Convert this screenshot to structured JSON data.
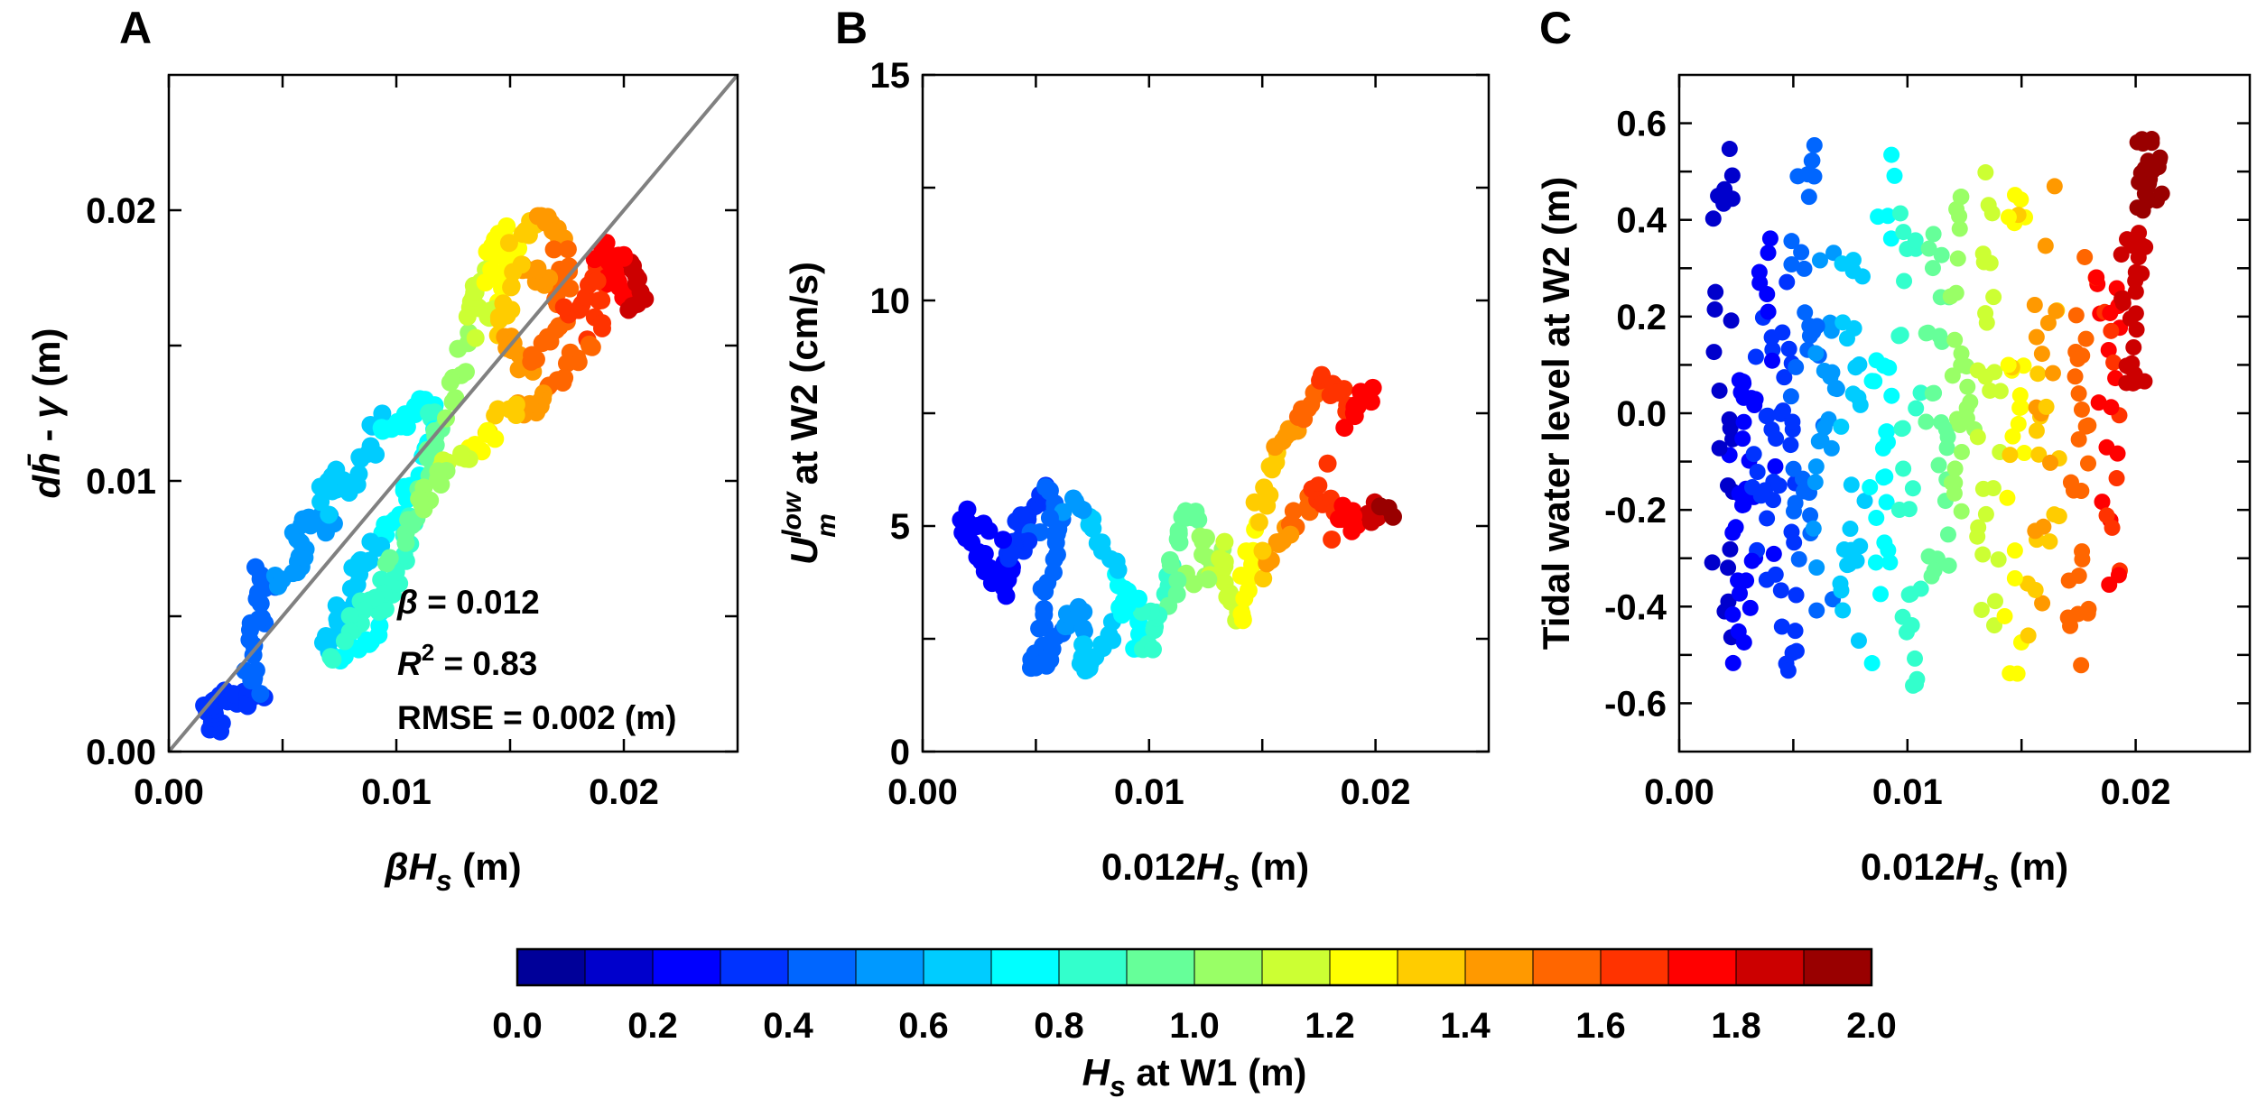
{
  "chart_data": [
    {
      "panel": "A",
      "type": "scatter",
      "xlim": [
        0,
        0.025
      ],
      "ylim": [
        0,
        0.025
      ],
      "xticks": [
        {
          "v": 0,
          "label": "0.00"
        },
        {
          "v": 0.01,
          "label": "0.01"
        },
        {
          "v": 0.02,
          "label": "0.02"
        }
      ],
      "yticks": [
        {
          "v": 0,
          "label": "0.00"
        },
        {
          "v": 0.01,
          "label": "0.01"
        },
        {
          "v": 0.02,
          "label": "0.02"
        }
      ],
      "xlabel": {
        "beta": "β",
        "H": "H",
        "s": "s",
        "unit": " (m)"
      },
      "ylabel": {
        "d": "d",
        "hbar": "h̄",
        "dash": " - ",
        "gamma": "γ",
        "unit": " (m)"
      },
      "reference_line": {
        "from": [
          0,
          0
        ],
        "to": [
          0.025,
          0.025
        ],
        "color": "#808080"
      },
      "stats": {
        "beta_sym": "β",
        "beta_val": " = 0.012",
        "R": "R",
        "R_sup": "2",
        "R_val": " = 0.83",
        "rmse": "RMSE = 0.002 (m)"
      },
      "path": [
        [
          0.0021,
          0.0008,
          0.32
        ],
        [
          0.0019,
          0.0012,
          0.33
        ],
        [
          0.0022,
          0.0016,
          0.35
        ],
        [
          0.0018,
          0.0019,
          0.34
        ],
        [
          0.0024,
          0.0021,
          0.36
        ],
        [
          0.003,
          0.002,
          0.37
        ],
        [
          0.0036,
          0.0018,
          0.38
        ],
        [
          0.004,
          0.0022,
          0.4
        ],
        [
          0.0035,
          0.003,
          0.41
        ],
        [
          0.0038,
          0.0042,
          0.43
        ],
        [
          0.0042,
          0.0055,
          0.45
        ],
        [
          0.004,
          0.0068,
          0.47
        ],
        [
          0.0046,
          0.006,
          0.49
        ],
        [
          0.0052,
          0.0065,
          0.51
        ],
        [
          0.006,
          0.007,
          0.53
        ],
        [
          0.0055,
          0.008,
          0.55
        ],
        [
          0.0065,
          0.0088,
          0.57
        ],
        [
          0.0072,
          0.0082,
          0.59
        ],
        [
          0.0068,
          0.0095,
          0.61
        ],
        [
          0.0075,
          0.0102,
          0.63
        ],
        [
          0.0082,
          0.0098,
          0.65
        ],
        [
          0.0088,
          0.011,
          0.67
        ],
        [
          0.0092,
          0.0122,
          0.7
        ],
        [
          0.01,
          0.0118,
          0.73
        ],
        [
          0.0108,
          0.0125,
          0.76
        ],
        [
          0.0112,
          0.013,
          0.79
        ],
        [
          0.0118,
          0.0124,
          0.81
        ],
        [
          0.0115,
          0.0112,
          0.78
        ],
        [
          0.0108,
          0.01,
          0.75
        ],
        [
          0.01,
          0.0088,
          0.72
        ],
        [
          0.0092,
          0.0078,
          0.7
        ],
        [
          0.0085,
          0.007,
          0.68
        ],
        [
          0.008,
          0.0058,
          0.66
        ],
        [
          0.0074,
          0.005,
          0.64
        ],
        [
          0.007,
          0.004,
          0.68
        ],
        [
          0.0078,
          0.0035,
          0.72
        ],
        [
          0.0088,
          0.004,
          0.76
        ],
        [
          0.0095,
          0.0052,
          0.8
        ],
        [
          0.01,
          0.0065,
          0.84
        ],
        [
          0.0104,
          0.008,
          0.88
        ],
        [
          0.011,
          0.0095,
          0.92
        ],
        [
          0.0116,
          0.011,
          0.96
        ],
        [
          0.0122,
          0.0125,
          1.0
        ],
        [
          0.0128,
          0.014,
          1.05
        ],
        [
          0.0132,
          0.0155,
          1.1
        ],
        [
          0.0136,
          0.017,
          1.15
        ],
        [
          0.014,
          0.0182,
          1.2
        ],
        [
          0.0146,
          0.0192,
          1.25
        ],
        [
          0.0152,
          0.0186,
          1.28
        ],
        [
          0.0148,
          0.0172,
          1.24
        ],
        [
          0.014,
          0.016,
          1.18
        ],
        [
          0.0134,
          0.0168,
          1.14
        ],
        [
          0.0142,
          0.0178,
          1.22
        ],
        [
          0.0155,
          0.019,
          1.32
        ],
        [
          0.0162,
          0.0198,
          1.4
        ],
        [
          0.0168,
          0.0194,
          1.45
        ],
        [
          0.0172,
          0.0185,
          1.5
        ],
        [
          0.0176,
          0.0175,
          1.55
        ],
        [
          0.017,
          0.0168,
          1.52
        ],
        [
          0.0164,
          0.0175,
          1.46
        ],
        [
          0.0158,
          0.0182,
          1.42
        ],
        [
          0.015,
          0.017,
          1.36
        ],
        [
          0.0145,
          0.016,
          1.38
        ],
        [
          0.015,
          0.015,
          1.42
        ],
        [
          0.0156,
          0.014,
          1.47
        ],
        [
          0.0162,
          0.0148,
          1.52
        ],
        [
          0.017,
          0.0158,
          1.58
        ],
        [
          0.0178,
          0.0164,
          1.62
        ],
        [
          0.0185,
          0.017,
          1.66
        ],
        [
          0.0192,
          0.0178,
          1.7
        ],
        [
          0.0198,
          0.0172,
          1.75
        ],
        [
          0.0204,
          0.0165,
          1.8
        ],
        [
          0.0208,
          0.0172,
          1.85
        ],
        [
          0.0202,
          0.018,
          1.8
        ],
        [
          0.0195,
          0.0186,
          1.74
        ],
        [
          0.0188,
          0.0182,
          1.7
        ],
        [
          0.019,
          0.016,
          1.64
        ],
        [
          0.0184,
          0.015,
          1.58
        ],
        [
          0.0176,
          0.0142,
          1.54
        ],
        [
          0.0168,
          0.0132,
          1.5
        ],
        [
          0.016,
          0.0124,
          1.44
        ],
        [
          0.015,
          0.0128,
          1.38
        ],
        [
          0.0142,
          0.0118,
          1.3
        ],
        [
          0.0135,
          0.0112,
          1.24
        ],
        [
          0.0128,
          0.0108,
          1.16
        ],
        [
          0.0122,
          0.0104,
          1.1
        ],
        [
          0.0116,
          0.0098,
          1.05
        ],
        [
          0.011,
          0.009,
          1.0
        ],
        [
          0.01,
          0.0072,
          0.92
        ],
        [
          0.009,
          0.0058,
          0.86
        ],
        [
          0.008,
          0.0048,
          0.8
        ],
        [
          0.0072,
          0.0034,
          0.84
        ]
      ]
    },
    {
      "panel": "B",
      "type": "scatter",
      "xlim": [
        0,
        0.025
      ],
      "ylim": [
        0,
        15
      ],
      "xticks": [
        {
          "v": 0,
          "label": "0.00"
        },
        {
          "v": 0.01,
          "label": "0.01"
        },
        {
          "v": 0.02,
          "label": "0.02"
        }
      ],
      "yticks": [
        {
          "v": 0,
          "label": "0"
        },
        {
          "v": 5,
          "label": "5"
        },
        {
          "v": 10,
          "label": "10"
        },
        {
          "v": 15,
          "label": "15"
        }
      ],
      "xlabel": {
        "coef": "0.012",
        "H": "H",
        "s": "s",
        "unit": " (m)"
      },
      "ylabel": {
        "U": "U",
        "sup": "low",
        "sub": "m",
        "rest": " at W2 (cm/s)"
      },
      "path": [
        [
          0.0018,
          5.2,
          0.2
        ],
        [
          0.0021,
          4.8,
          0.22
        ],
        [
          0.0025,
          4.3,
          0.24
        ],
        [
          0.003,
          4.0,
          0.26
        ],
        [
          0.0035,
          3.6,
          0.28
        ],
        [
          0.0038,
          4.2,
          0.3
        ],
        [
          0.0042,
          5.0,
          0.33
        ],
        [
          0.0048,
          5.4,
          0.36
        ],
        [
          0.0055,
          5.8,
          0.4
        ],
        [
          0.006,
          5.4,
          0.44
        ],
        [
          0.0058,
          4.6,
          0.48
        ],
        [
          0.0055,
          3.6,
          0.46
        ],
        [
          0.0052,
          2.6,
          0.44
        ],
        [
          0.005,
          1.8,
          0.42
        ],
        [
          0.0056,
          2.2,
          0.45
        ],
        [
          0.0062,
          2.8,
          0.5
        ],
        [
          0.0068,
          3.2,
          0.55
        ],
        [
          0.0072,
          2.6,
          0.6
        ],
        [
          0.007,
          1.8,
          0.62
        ],
        [
          0.0078,
          2.0,
          0.66
        ],
        [
          0.0085,
          2.8,
          0.7
        ],
        [
          0.009,
          3.4,
          0.74
        ],
        [
          0.0095,
          2.4,
          0.78
        ],
        [
          0.01,
          2.2,
          0.82
        ],
        [
          0.0105,
          3.2,
          0.86
        ],
        [
          0.011,
          4.2,
          0.9
        ],
        [
          0.0115,
          5.0,
          0.94
        ],
        [
          0.012,
          5.4,
          0.98
        ],
        [
          0.0125,
          4.6,
          1.02
        ],
        [
          0.0128,
          3.8,
          1.06
        ],
        [
          0.0132,
          4.5,
          1.1
        ],
        [
          0.0136,
          3.4,
          1.15
        ],
        [
          0.014,
          2.8,
          1.2
        ],
        [
          0.0142,
          3.8,
          1.25
        ],
        [
          0.0145,
          4.6,
          1.28
        ],
        [
          0.015,
          5.6,
          1.32
        ],
        [
          0.0155,
          6.4,
          1.38
        ],
        [
          0.016,
          7.0,
          1.44
        ],
        [
          0.0166,
          7.3,
          1.5
        ],
        [
          0.0172,
          7.8,
          1.56
        ],
        [
          0.0178,
          8.2,
          1.62
        ],
        [
          0.0185,
          7.8,
          1.68
        ],
        [
          0.0192,
          7.5,
          1.72
        ],
        [
          0.0198,
          8.0,
          1.78
        ],
        [
          0.015,
          4.0,
          1.4
        ],
        [
          0.0158,
          4.6,
          1.46
        ],
        [
          0.0166,
          5.2,
          1.54
        ],
        [
          0.0175,
          5.8,
          1.62
        ],
        [
          0.0184,
          5.4,
          1.7
        ],
        [
          0.0192,
          5.0,
          1.78
        ],
        [
          0.02,
          5.4,
          1.86
        ],
        [
          0.0207,
          5.3,
          1.94
        ],
        [
          0.0135,
          4.2,
          1.18
        ],
        [
          0.0118,
          3.8,
          1.0
        ],
        [
          0.01,
          3.0,
          0.84
        ],
        [
          0.0088,
          3.6,
          0.72
        ],
        [
          0.008,
          4.4,
          0.66
        ],
        [
          0.0074,
          5.2,
          0.62
        ],
        [
          0.0066,
          5.6,
          0.56
        ],
        [
          0.0046,
          4.6,
          0.38
        ],
        [
          0.004,
          4.4,
          0.34
        ],
        [
          0.0024,
          5.0,
          0.24
        ]
      ]
    },
    {
      "panel": "C",
      "type": "scatter",
      "xlim": [
        0,
        0.025
      ],
      "ylim": [
        -0.7,
        0.7
      ],
      "xticks": [
        {
          "v": 0,
          "label": "0.00"
        },
        {
          "v": 0.01,
          "label": "0.01"
        },
        {
          "v": 0.02,
          "label": "0.02"
        }
      ],
      "yticks": [
        {
          "v": 0.6,
          "label": "0.6"
        },
        {
          "v": 0.4,
          "label": "0.4"
        },
        {
          "v": 0.2,
          "label": "0.2"
        },
        {
          "v": 0.0,
          "label": "0.0"
        },
        {
          "v": -0.2,
          "label": "-0.2"
        },
        {
          "v": -0.4,
          "label": "-0.4"
        },
        {
          "v": -0.6,
          "label": "-0.6"
        }
      ],
      "xlabel": {
        "coef": "0.012",
        "H": "H",
        "s": "s",
        "unit": " (m)"
      },
      "ylabel": {
        "text": "Tidal water level at W2 (m)"
      },
      "columns": [
        {
          "x": 0.0019,
          "h": 0.18,
          "ymin": -0.52,
          "ymax": 0.55
        },
        {
          "x": 0.0028,
          "h": 0.26,
          "ymin": -0.52,
          "ymax": 0.1
        },
        {
          "x": 0.0037,
          "h": 0.3,
          "ymin": -0.45,
          "ymax": 0.38
        },
        {
          "x": 0.0046,
          "h": 0.36,
          "ymin": -0.55,
          "ymax": 0.35
        },
        {
          "x": 0.0054,
          "h": 0.42,
          "ymin": -0.32,
          "ymax": 0.57
        },
        {
          "x": 0.0064,
          "h": 0.52,
          "ymin": -0.42,
          "ymax": 0.45
        },
        {
          "x": 0.0076,
          "h": 0.64,
          "ymin": -0.48,
          "ymax": 0.35
        },
        {
          "x": 0.0089,
          "h": 0.74,
          "ymin": -0.55,
          "ymax": 0.58
        },
        {
          "x": 0.0101,
          "h": 0.84,
          "ymin": -0.58,
          "ymax": 0.42
        },
        {
          "x": 0.0113,
          "h": 0.96,
          "ymin": -0.4,
          "ymax": 0.4
        },
        {
          "x": 0.0124,
          "h": 1.06,
          "ymin": -0.32,
          "ymax": 0.48
        },
        {
          "x": 0.0136,
          "h": 1.16,
          "ymin": -0.52,
          "ymax": 0.5
        },
        {
          "x": 0.0148,
          "h": 1.28,
          "ymin": -0.58,
          "ymax": 0.48
        },
        {
          "x": 0.0161,
          "h": 1.4,
          "ymin": -0.45,
          "ymax": 0.5
        },
        {
          "x": 0.0175,
          "h": 1.54,
          "ymin": -0.55,
          "ymax": 0.38
        },
        {
          "x": 0.0188,
          "h": 1.7,
          "ymin": -0.4,
          "ymax": 0.3
        },
        {
          "x": 0.0199,
          "h": 1.84,
          "ymin": 0.05,
          "ymax": 0.38
        },
        {
          "x": 0.0206,
          "h": 1.96,
          "ymin": 0.4,
          "ymax": 0.57
        }
      ]
    },
    {
      "type": "colorbar",
      "range": [
        0,
        2
      ],
      "segments": 20,
      "ticks": [
        {
          "v": 0.0,
          "label": "0.0"
        },
        {
          "v": 0.2,
          "label": "0.2"
        },
        {
          "v": 0.4,
          "label": "0.4"
        },
        {
          "v": 0.6,
          "label": "0.6"
        },
        {
          "v": 0.8,
          "label": "0.8"
        },
        {
          "v": 1.0,
          "label": "1.0"
        },
        {
          "v": 1.2,
          "label": "1.2"
        },
        {
          "v": 1.4,
          "label": "1.4"
        },
        {
          "v": 1.6,
          "label": "1.6"
        },
        {
          "v": 1.8,
          "label": "1.8"
        },
        {
          "v": 2.0,
          "label": "2.0"
        }
      ],
      "label": {
        "H": "H",
        "s": "s",
        "rest": " at W1 (m)"
      }
    }
  ],
  "panel_labels": {
    "a": "A",
    "b": "B",
    "c": "C"
  },
  "colors": {
    "line": "#808080",
    "axis": "#000000"
  }
}
